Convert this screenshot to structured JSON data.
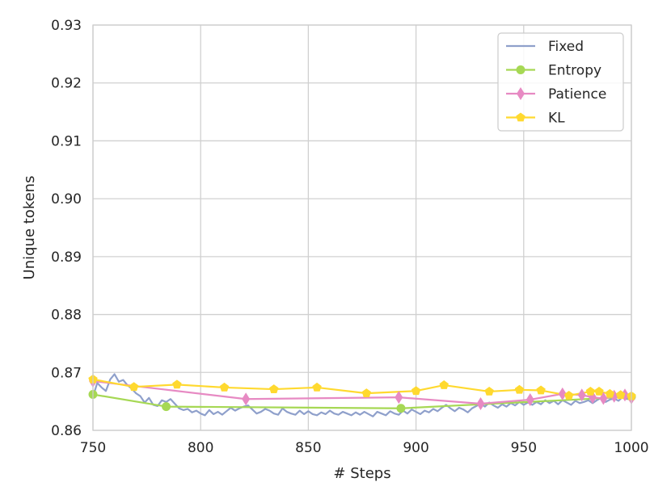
{
  "chart_data": {
    "type": "line",
    "xlabel": "# Steps",
    "ylabel": "Unique tokens",
    "xlim": [
      750,
      1000
    ],
    "ylim": [
      0.86,
      0.93
    ],
    "xticks": [
      "750",
      "800",
      "850",
      "900",
      "950",
      "1000"
    ],
    "yticks": [
      "0.86",
      "0.87",
      "0.88",
      "0.89",
      "0.90",
      "0.91",
      "0.92",
      "0.93"
    ],
    "grid": true,
    "legend_position": "top-right",
    "series": [
      {
        "name": "Fixed",
        "color": "#8fa0cb",
        "marker": "none",
        "x": [
          750,
          752,
          754,
          756,
          758,
          760,
          762,
          764,
          766,
          768,
          770,
          772,
          774,
          776,
          778,
          780,
          782,
          784,
          786,
          788,
          790,
          792,
          794,
          796,
          798,
          800,
          802,
          804,
          806,
          808,
          810,
          812,
          814,
          816,
          818,
          820,
          822,
          824,
          826,
          828,
          830,
          832,
          834,
          836,
          838,
          840,
          842,
          844,
          846,
          848,
          850,
          852,
          854,
          856,
          858,
          860,
          862,
          864,
          866,
          868,
          870,
          872,
          874,
          876,
          878,
          880,
          882,
          884,
          886,
          888,
          890,
          892,
          894,
          896,
          898,
          900,
          902,
          904,
          906,
          908,
          910,
          912,
          914,
          916,
          918,
          920,
          922,
          924,
          926,
          928,
          930,
          932,
          934,
          936,
          938,
          940,
          942,
          944,
          946,
          948,
          950,
          952,
          954,
          956,
          958,
          960,
          962,
          964,
          966,
          968,
          970,
          972,
          974,
          976,
          978,
          980,
          982,
          984,
          986,
          988,
          990,
          992,
          994,
          996,
          998,
          1000
        ],
        "y": [
          0.8658,
          0.8682,
          0.8674,
          0.8668,
          0.8688,
          0.8697,
          0.8684,
          0.8687,
          0.8678,
          0.8672,
          0.8664,
          0.8659,
          0.8648,
          0.8656,
          0.8644,
          0.8642,
          0.8652,
          0.8649,
          0.8654,
          0.8646,
          0.8638,
          0.8635,
          0.8637,
          0.8631,
          0.8634,
          0.8629,
          0.8626,
          0.8635,
          0.8628,
          0.8632,
          0.8627,
          0.8633,
          0.8639,
          0.8634,
          0.8638,
          0.8641,
          0.8643,
          0.8636,
          0.8629,
          0.8632,
          0.8637,
          0.8634,
          0.8629,
          0.8627,
          0.8638,
          0.8632,
          0.8629,
          0.8627,
          0.8634,
          0.8628,
          0.8633,
          0.8628,
          0.8626,
          0.8631,
          0.8628,
          0.8634,
          0.8629,
          0.8627,
          0.8632,
          0.8629,
          0.8626,
          0.8631,
          0.8627,
          0.8632,
          0.8628,
          0.8624,
          0.8632,
          0.8629,
          0.8626,
          0.8633,
          0.8629,
          0.8627,
          0.8634,
          0.8629,
          0.8636,
          0.8632,
          0.8628,
          0.8634,
          0.8631,
          0.8637,
          0.8633,
          0.8639,
          0.8644,
          0.8638,
          0.8633,
          0.8639,
          0.8636,
          0.8631,
          0.8638,
          0.8642,
          0.8646,
          0.8641,
          0.8648,
          0.8643,
          0.8639,
          0.8645,
          0.8641,
          0.8647,
          0.8643,
          0.8649,
          0.8644,
          0.8648,
          0.8644,
          0.8649,
          0.8645,
          0.8652,
          0.8647,
          0.8651,
          0.8645,
          0.8652,
          0.8648,
          0.8644,
          0.8651,
          0.8647,
          0.8649,
          0.8652,
          0.8647,
          0.8652,
          0.8656,
          0.8649,
          0.8653,
          0.8655,
          0.8651,
          0.8658,
          0.8654,
          0.8656
        ]
      },
      {
        "name": "Entropy",
        "color": "#a6d854",
        "marker": "circle",
        "x": [
          750,
          784,
          893,
          1000
        ],
        "y": [
          0.8662,
          0.8641,
          0.8638,
          0.8658
        ]
      },
      {
        "name": "Patience",
        "color": "#e78ac3",
        "marker": "diamond",
        "x": [
          750,
          821,
          892,
          930,
          953,
          968,
          977,
          982,
          987,
          992,
          997,
          1000
        ],
        "y": [
          0.8685,
          0.8654,
          0.8657,
          0.8646,
          0.8653,
          0.8663,
          0.8661,
          0.8657,
          0.8655,
          0.8659,
          0.8661,
          0.8656
        ]
      },
      {
        "name": "KL",
        "color": "#ffd92f",
        "marker": "pentagon",
        "x": [
          750,
          769,
          789,
          811,
          834,
          854,
          877,
          900,
          913,
          934,
          948,
          958,
          971,
          981,
          985,
          990,
          995,
          1000
        ],
        "y": [
          0.8688,
          0.8675,
          0.8679,
          0.8674,
          0.8671,
          0.8674,
          0.8664,
          0.8668,
          0.8678,
          0.8667,
          0.867,
          0.8669,
          0.866,
          0.8667,
          0.8667,
          0.8663,
          0.8661,
          0.8659
        ]
      }
    ]
  }
}
